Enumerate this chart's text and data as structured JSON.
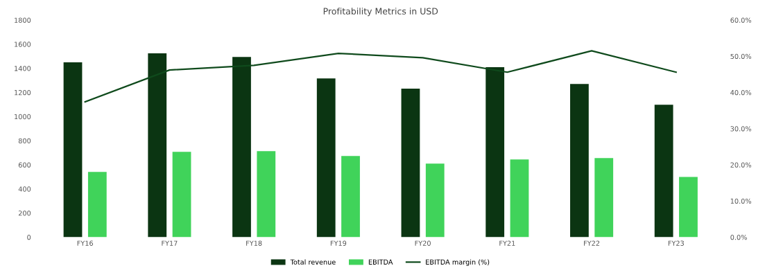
{
  "chart_data": {
    "type": "bar",
    "title": "Profitability Metrics in USD",
    "categories": [
      "FY16",
      "FY17",
      "FY18",
      "FY19",
      "FY20",
      "FY21",
      "FY22",
      "FY23"
    ],
    "series": [
      {
        "name": "Total revenue",
        "color": "#0b3512",
        "values": [
          1450,
          1525,
          1495,
          1317,
          1231,
          1409,
          1271,
          1098
        ]
      },
      {
        "name": "EBITDA",
        "color": "#40d35a",
        "values": [
          541,
          707,
          713,
          673,
          610,
          644,
          656,
          500
        ]
      },
      {
        "name": "EBITDA margin (%)",
        "type": "line",
        "axis": "y2",
        "color": "#0f4a1c",
        "values": [
          37.4,
          46.2,
          47.5,
          50.8,
          49.6,
          45.6,
          51.5,
          45.6
        ]
      }
    ],
    "ylim": [
      0,
      1800
    ],
    "yticks": [
      0,
      200,
      400,
      600,
      800,
      1000,
      1200,
      1400,
      1600,
      1800
    ],
    "y2lim": [
      0,
      60
    ],
    "y2ticks": [
      {
        "value": 0,
        "label": "0.0%"
      },
      {
        "value": 10,
        "label": "10.0%"
      },
      {
        "value": 20,
        "label": "20.0%"
      },
      {
        "value": 30,
        "label": "30.0%"
      },
      {
        "value": 40,
        "label": "40.0%"
      },
      {
        "value": 50,
        "label": "50.0%"
      },
      {
        "value": 60,
        "label": "60.0%"
      }
    ],
    "legend": "bottom",
    "grid": false
  }
}
